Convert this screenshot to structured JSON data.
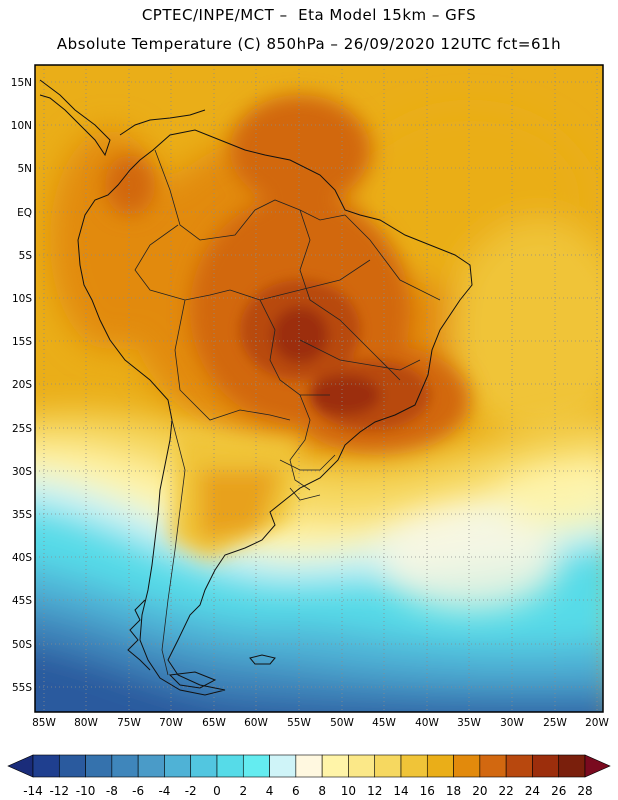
{
  "header": {
    "line1": "CPTEC/INPE/MCT –  Eta Model 15km – GFS",
    "line2": "Absolute Temperature (C) 850hPa – 26/09/2020 12UTC fct=61h"
  },
  "map": {
    "region": "South America",
    "lat_range": [
      -58,
      16
    ],
    "lon_range": [
      -86,
      -19
    ],
    "lat_ticks": [
      "15N",
      "10N",
      "5N",
      "EQ",
      "5S",
      "10S",
      "15S",
      "20S",
      "25S",
      "30S",
      "35S",
      "40S",
      "45S",
      "50S",
      "55S"
    ],
    "lon_ticks": [
      "85W",
      "80W",
      "75W",
      "70W",
      "65W",
      "60W",
      "55W",
      "50W",
      "45W",
      "40W",
      "35W",
      "30W",
      "25W",
      "20W"
    ]
  },
  "colorbar": {
    "labels": [
      "-14",
      "-12",
      "-10",
      "-8",
      "-6",
      "-4",
      "-2",
      "0",
      "2",
      "4",
      "6",
      "8",
      "10",
      "12",
      "14",
      "16",
      "18",
      "20",
      "22",
      "24",
      "26",
      "28"
    ],
    "colors": [
      "#1f3f8f",
      "#2a5a9e",
      "#3572ad",
      "#3f86bb",
      "#4a9bc8",
      "#4fb2d6",
      "#52c6e0",
      "#56dbe8",
      "#64ecf0",
      "#cff4f8",
      "#fff8e0",
      "#fff4a8",
      "#fbe888",
      "#f6d860",
      "#f0c438",
      "#eaae18",
      "#e28a0c",
      "#d26810",
      "#b8480e",
      "#9c2e0c",
      "#7a1f0c"
    ],
    "under_color": "#1a2c7a",
    "over_color": "#7a0a1f"
  }
}
